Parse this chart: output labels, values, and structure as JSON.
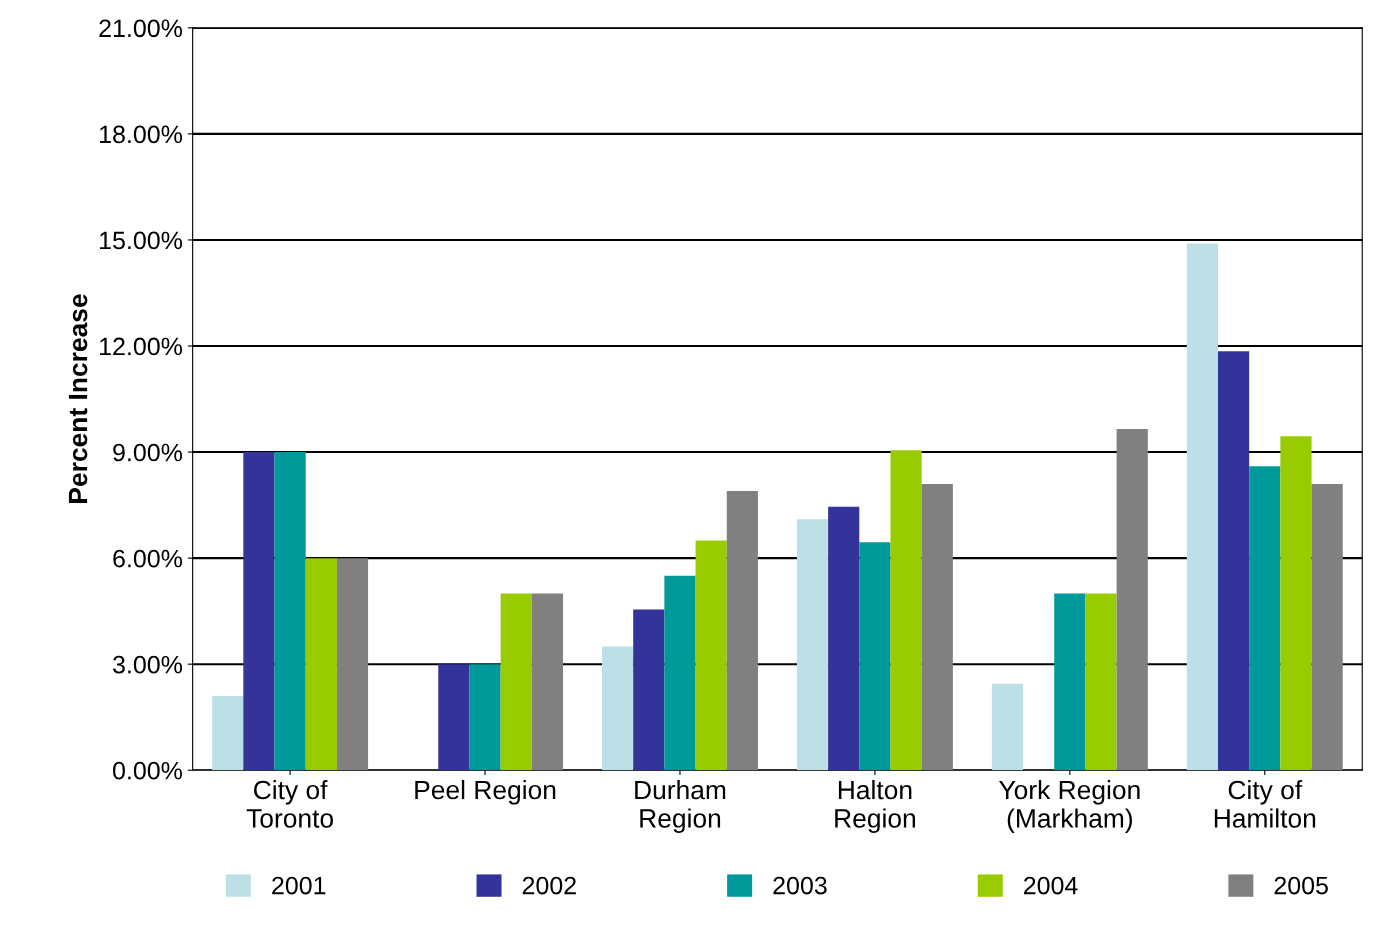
{
  "chart_data": {
    "type": "bar",
    "ylabel": "Percent Increase",
    "categories": [
      "City of\nToronto",
      "Peel Region",
      "Durham\nRegion",
      "Halton\nRegion",
      "York Region\n(Markham)",
      "City of\nHamilton"
    ],
    "series": [
      {
        "name": "2001",
        "color": "#bce0e5",
        "values": [
          2.1,
          0,
          3.5,
          7.1,
          2.45,
          14.9
        ]
      },
      {
        "name": "2002",
        "color": "#333399",
        "values": [
          9.0,
          3.0,
          4.55,
          7.45,
          0,
          11.85
        ]
      },
      {
        "name": "2003",
        "color": "#009999",
        "values": [
          9.0,
          3.0,
          5.5,
          6.45,
          5.0,
          8.6
        ]
      },
      {
        "name": "2004",
        "color": "#99cc00",
        "values": [
          6.0,
          5.0,
          6.5,
          9.05,
          5.0,
          9.45
        ]
      },
      {
        "name": "2005",
        "color": "#808080",
        "values": [
          6.0,
          5.0,
          7.9,
          8.1,
          9.65,
          8.1
        ]
      }
    ],
    "ylim": [
      0,
      21
    ],
    "yticks": [
      {
        "value": 0,
        "label": "0.00%"
      },
      {
        "value": 3,
        "label": "3.00%"
      },
      {
        "value": 6,
        "label": "6.00%"
      },
      {
        "value": 9,
        "label": "9.00%"
      },
      {
        "value": 12,
        "label": "12.00%"
      },
      {
        "value": 15,
        "label": "15.00%"
      },
      {
        "value": 18,
        "label": "18.00%"
      },
      {
        "value": 21,
        "label": "21.00%"
      }
    ],
    "grid": "y",
    "legend": "bottom"
  }
}
